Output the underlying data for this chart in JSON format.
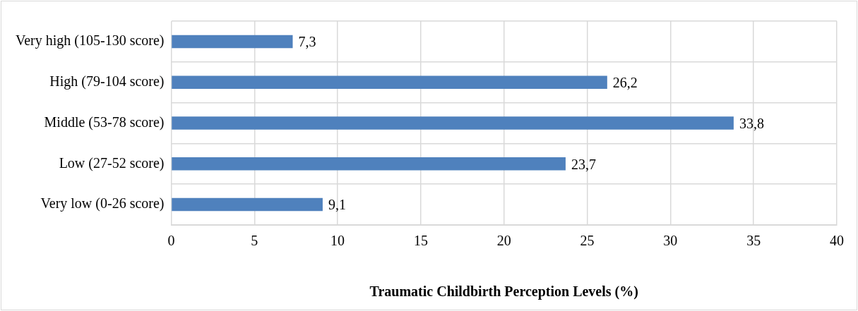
{
  "chart_data": {
    "type": "bar",
    "orientation": "horizontal",
    "xlabel": "Traumatic Childbirth Perception Levels (%)",
    "categories": [
      "Very high (105-130 score)",
      "High (79-104 score)",
      "Middle (53-78 score)",
      "Low (27-52 score)",
      "Very low (0-26 score)"
    ],
    "values": [
      7.3,
      26.2,
      33.8,
      23.7,
      9.1
    ],
    "value_labels": [
      "7,3",
      "26,2",
      "33,8",
      "23,7",
      "9,1"
    ],
    "color": "#4f81bd",
    "xlim": [
      0,
      40
    ],
    "xticks": [
      0,
      5,
      10,
      15,
      20,
      25,
      30,
      35,
      40
    ],
    "grid": true,
    "legend": false
  }
}
